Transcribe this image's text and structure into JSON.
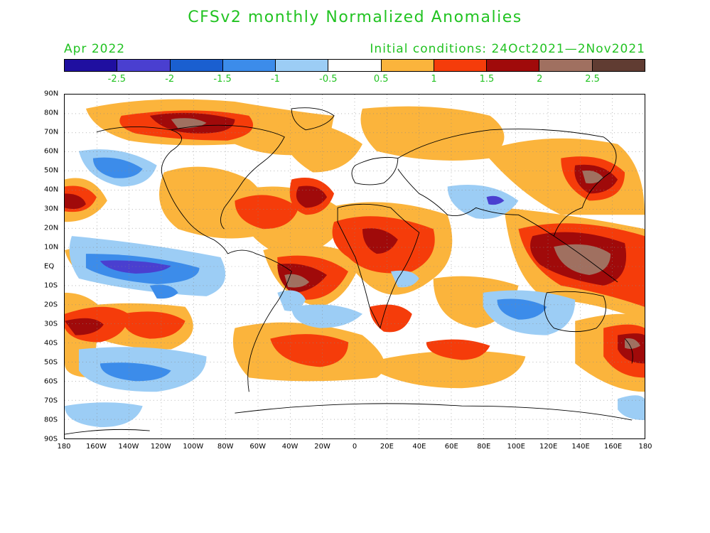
{
  "title": "CFSv2 monthly Normalized Anomalies",
  "valid_month": "Apr 2022",
  "initial_conditions": "Initial conditions: 24Oct2021—2Nov2021",
  "colorbar": {
    "colors": [
      "#1f0fa0",
      "#4a3fd0",
      "#1a5fd0",
      "#3c8cea",
      "#9ccdf5",
      "#ffffff",
      "#fbb43c",
      "#f53c0a",
      "#a00a0a",
      "#a07060",
      "#603c32"
    ],
    "labels": [
      "-2.5",
      "-2",
      "-1.5",
      "-1",
      "-0.5",
      "0.5",
      "1",
      "1.5",
      "2",
      "2.5"
    ]
  },
  "lat_labels": [
    "90N",
    "80N",
    "70N",
    "60N",
    "50N",
    "40N",
    "30N",
    "20N",
    "10N",
    "EQ",
    "10S",
    "20S",
    "30S",
    "40S",
    "50S",
    "60S",
    "70S",
    "80S",
    "90S"
  ],
  "lon_labels": [
    "180",
    "160W",
    "140W",
    "120W",
    "100W",
    "80W",
    "60W",
    "40W",
    "20W",
    "0",
    "20E",
    "40E",
    "60E",
    "80E",
    "100E",
    "120E",
    "140E",
    "160E",
    "180"
  ],
  "palette": {
    "title_green": "#22c322",
    "anom_p05": "#fbb43c",
    "anom_p1": "#f53c0a",
    "anom_p15": "#a00a0a",
    "anom_p2": "#a07060",
    "anom_n05": "#9ccdf5",
    "anom_n1": "#3c8cea",
    "anom_n15": "#1a5fd0",
    "anom_n2": "#4a3fd0"
  }
}
